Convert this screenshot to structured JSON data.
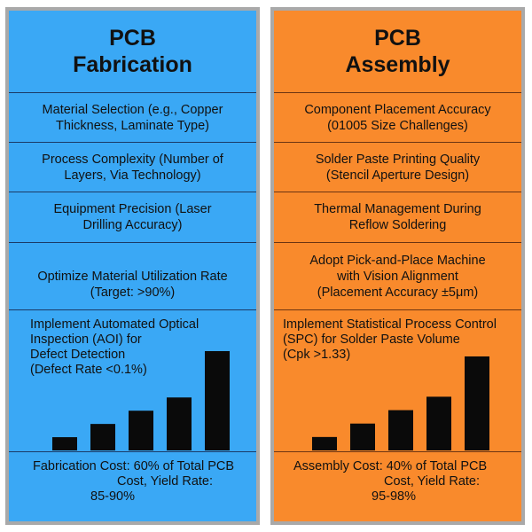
{
  "fabrication": {
    "title_line1": "PCB",
    "title_line2": "Fabrication",
    "items": [
      {
        "line1": "Material Selection (e.g., Copper",
        "line2": "Thickness, Laminate Type)"
      },
      {
        "line1": "Process Complexity (Number of",
        "line2": "Layers, Via Technology)"
      },
      {
        "line1": "Equipment Precision (Laser",
        "line2": "Drilling Accuracy)"
      },
      {
        "line1": "Optimize Material Utilization Rate",
        "line2": "(Target: >90%)"
      }
    ],
    "chart_text": [
      "Implement Automated Optical",
      "Inspection (AOI) for",
      "Defect Detection",
      "(Defect Rate <0.1%)"
    ],
    "footer": [
      "Fabrication Cost: 60% of Total PCB",
      "Cost, Yield Rate:",
      "85-90%"
    ],
    "colors": {
      "background": "#3aa8f5",
      "bar": "#0a0a0a"
    }
  },
  "assembly": {
    "title_line1": "PCB",
    "title_line2": "Assembly",
    "items": [
      {
        "line1": "Component Placement Accuracy",
        "line2": "(01005 Size Challenges)"
      },
      {
        "line1": "Solder Paste Printing Quality",
        "line2": "(Stencil Aperture Design)"
      },
      {
        "line1": "Thermal Management During",
        "line2": "Reflow Soldering"
      },
      {
        "line1": "Adopt Pick-and-Place Machine",
        "line2": "with Vision Alignment",
        "line3": "(Placement Accuracy ±5μm)"
      }
    ],
    "chart_text": [
      "Implement Statistical Process Control",
      "(SPC) for Solder Paste Volume",
      "(Cpk >1.33)"
    ],
    "footer": [
      "Assembly Cost: 40% of Total PCB",
      "Cost, Yield Rate:",
      "95-98%"
    ],
    "colors": {
      "background": "#f98a2c",
      "bar": "#0a0a0a"
    }
  },
  "chart_data": [
    {
      "type": "bar",
      "panel": "fabrication",
      "values": [
        1,
        2,
        3,
        4,
        7.5
      ]
    },
    {
      "type": "bar",
      "panel": "assembly",
      "values": [
        1,
        2,
        3,
        4,
        7
      ]
    }
  ]
}
